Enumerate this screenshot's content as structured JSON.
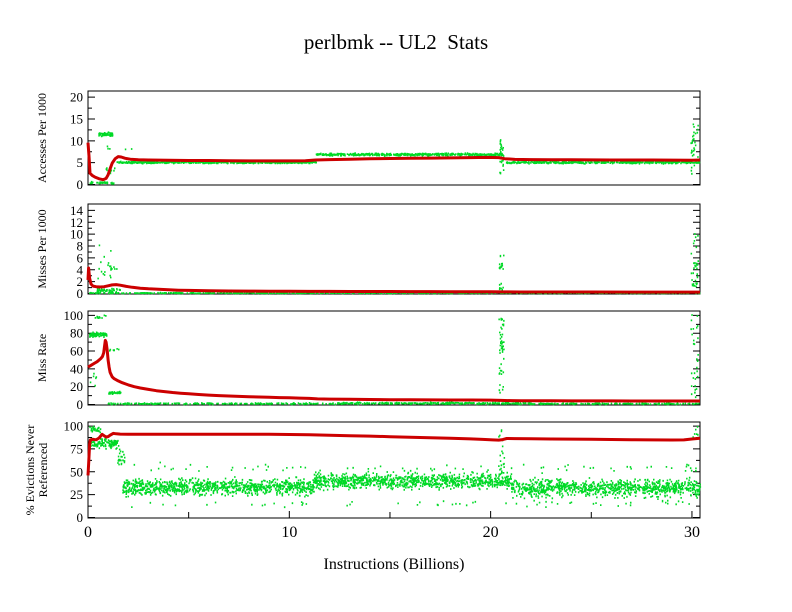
{
  "title": "perlbmk -- UL2  Stats",
  "xlabel": "Instructions (Billions)",
  "colors": {
    "line": "#cc0000",
    "scatter": "#00d926",
    "axis": "#000000",
    "background": "#ffffff"
  },
  "axes": {
    "xlim": [
      0,
      30.4
    ],
    "xticks": [
      0,
      10,
      20,
      30
    ],
    "x_minor_ticks": [
      5,
      15,
      25
    ]
  },
  "chart_data": [
    {
      "type": "scatter+line",
      "name": "ul2-accesses-per-1000",
      "ylabel": "Accesses Per 1000",
      "ylabel_lines": [
        "Accesses Per 1000"
      ],
      "ylim": [
        0,
        21.3
      ],
      "yticks": [
        0,
        5,
        10,
        15,
        20
      ],
      "y_minor_ticks": [
        2.5,
        7.5,
        12.5,
        17.5
      ],
      "line": {
        "points": [
          [
            0,
            9.6
          ],
          [
            0.05,
            6.5
          ],
          [
            0.1,
            2.6
          ],
          [
            0.2,
            2.1
          ],
          [
            0.35,
            1.7
          ],
          [
            0.55,
            1.3
          ],
          [
            0.75,
            1.1
          ],
          [
            0.9,
            1.4
          ],
          [
            1.0,
            2.2
          ],
          [
            1.1,
            3.6
          ],
          [
            1.2,
            4.9
          ],
          [
            1.35,
            5.9
          ],
          [
            1.5,
            6.4
          ],
          [
            1.65,
            6.3
          ],
          [
            1.85,
            6.0
          ],
          [
            2.1,
            5.8
          ],
          [
            2.5,
            5.65
          ],
          [
            3,
            5.6
          ],
          [
            4,
            5.55
          ],
          [
            5,
            5.5
          ],
          [
            6,
            5.5
          ],
          [
            7,
            5.45
          ],
          [
            8,
            5.4
          ],
          [
            9,
            5.4
          ],
          [
            10,
            5.4
          ],
          [
            10.8,
            5.45
          ],
          [
            11.3,
            5.6
          ],
          [
            12,
            5.7
          ],
          [
            13,
            5.8
          ],
          [
            14,
            5.9
          ],
          [
            15,
            5.95
          ],
          [
            16,
            6.0
          ],
          [
            17,
            6.05
          ],
          [
            18,
            6.1
          ],
          [
            19,
            6.15
          ],
          [
            19.8,
            6.2
          ],
          [
            20.4,
            6.15
          ],
          [
            20.7,
            5.9
          ],
          [
            21.2,
            5.75
          ],
          [
            22,
            5.7
          ],
          [
            23,
            5.68
          ],
          [
            24,
            5.65
          ],
          [
            25,
            5.63
          ],
          [
            26,
            5.62
          ],
          [
            27,
            5.6
          ],
          [
            28,
            5.6
          ],
          [
            29,
            5.58
          ],
          [
            30,
            5.55
          ],
          [
            30.4,
            5.6
          ]
        ]
      },
      "scatter": {
        "bands": [
          {
            "x0": 0.05,
            "x1": 1.25,
            "y": 0.35,
            "spread": 0.25,
            "n": 30
          },
          {
            "x0": 0.5,
            "x1": 1.2,
            "y": 11.5,
            "spread": 0.45,
            "n": 70
          },
          {
            "x0": 0.85,
            "x1": 1.3,
            "y": 3.0,
            "spread": 1.0,
            "n": 12
          },
          {
            "x0": 0.8,
            "x1": 2.2,
            "y": 8.4,
            "spread": 0.3,
            "n": 5
          },
          {
            "x0": 1.3,
            "x1": 11.3,
            "y": 5.05,
            "spread": 0.22,
            "n": 520
          },
          {
            "x0": 11.3,
            "x1": 20.6,
            "y": 6.85,
            "spread": 0.28,
            "n": 480
          },
          {
            "x0": 20.7,
            "x1": 30.4,
            "y": 5.05,
            "spread": 0.25,
            "n": 470
          }
        ],
        "columns": [
          {
            "x": 20.52,
            "xspread": 0.1,
            "y0": 2.5,
            "y1": 10.5,
            "n": 28
          },
          {
            "x": 30.1,
            "xspread": 0.18,
            "y0": 1.0,
            "y1": 13.8,
            "n": 32
          }
        ]
      }
    },
    {
      "type": "scatter+line",
      "name": "ul2-misses-per-1000",
      "ylabel": "Misses Per 1000",
      "ylabel_lines": [
        "Misses Per 1000"
      ],
      "ylim": [
        0,
        15.0
      ],
      "yticks": [
        0,
        2,
        4,
        6,
        8,
        10,
        12,
        14
      ],
      "y_minor_ticks": [
        1,
        3,
        5,
        7,
        9,
        11,
        13
      ],
      "line": {
        "points": [
          [
            0,
            2.3
          ],
          [
            0.03,
            4.3
          ],
          [
            0.08,
            2.6
          ],
          [
            0.15,
            1.6
          ],
          [
            0.25,
            1.25
          ],
          [
            0.4,
            1.15
          ],
          [
            0.6,
            1.1
          ],
          [
            0.8,
            1.15
          ],
          [
            1.0,
            1.3
          ],
          [
            1.2,
            1.45
          ],
          [
            1.4,
            1.5
          ],
          [
            1.6,
            1.4
          ],
          [
            1.9,
            1.2
          ],
          [
            2.2,
            1.05
          ],
          [
            2.6,
            0.9
          ],
          [
            3,
            0.8
          ],
          [
            3.5,
            0.7
          ],
          [
            4,
            0.62
          ],
          [
            4.5,
            0.56
          ],
          [
            5,
            0.52
          ],
          [
            6,
            0.46
          ],
          [
            7,
            0.42
          ],
          [
            8,
            0.4
          ],
          [
            9,
            0.38
          ],
          [
            10,
            0.37
          ],
          [
            11,
            0.36
          ],
          [
            12,
            0.35
          ],
          [
            13,
            0.34
          ],
          [
            14,
            0.34
          ],
          [
            15,
            0.33
          ],
          [
            16,
            0.32
          ],
          [
            17,
            0.32
          ],
          [
            18,
            0.31
          ],
          [
            19,
            0.3
          ],
          [
            20,
            0.29
          ],
          [
            20.6,
            0.27
          ],
          [
            21.5,
            0.26
          ],
          [
            23,
            0.25
          ],
          [
            25,
            0.25
          ],
          [
            27,
            0.24
          ],
          [
            29,
            0.24
          ],
          [
            30.4,
            0.24
          ]
        ]
      },
      "scatter": {
        "bands": [
          {
            "x0": 0.0,
            "x1": 30.4,
            "y": 0.07,
            "spread": 0.07,
            "n": 650
          },
          {
            "x0": 0.3,
            "x1": 1.6,
            "y": 0.55,
            "spread": 0.35,
            "n": 45
          },
          {
            "x0": 1.1,
            "x1": 1.45,
            "y": 4.2,
            "spread": 0.4,
            "n": 8
          }
        ],
        "columns": [
          {
            "x": 0.8,
            "xspread": 0.35,
            "y0": 1.5,
            "y1": 8.2,
            "n": 16
          },
          {
            "x": 20.5,
            "xspread": 0.12,
            "y0": 0.4,
            "y1": 7.0,
            "n": 15
          },
          {
            "x": 20.5,
            "xspread": 0.1,
            "y0": 4.2,
            "y1": 5.0,
            "n": 6
          },
          {
            "x": 30.1,
            "xspread": 0.18,
            "y0": 0.4,
            "y1": 10.2,
            "n": 18
          },
          {
            "x": 30.1,
            "xspread": 0.15,
            "y0": 4.0,
            "y1": 5.2,
            "n": 10
          },
          {
            "x": 30.1,
            "xspread": 0.15,
            "y0": 1.2,
            "y1": 1.8,
            "n": 6
          }
        ]
      }
    },
    {
      "type": "scatter+line",
      "name": "ul2-miss-rate",
      "ylabel": "Miss Rate",
      "ylabel_lines": [
        "Miss Rate"
      ],
      "ylim": [
        0,
        104.4
      ],
      "yticks": [
        0,
        20,
        40,
        60,
        80,
        100
      ],
      "y_minor_ticks": [
        10,
        30,
        50,
        70,
        90
      ],
      "line": {
        "points": [
          [
            0,
            42
          ],
          [
            0.15,
            44
          ],
          [
            0.3,
            46
          ],
          [
            0.45,
            48
          ],
          [
            0.55,
            50
          ],
          [
            0.65,
            52
          ],
          [
            0.72,
            54
          ],
          [
            0.78,
            58
          ],
          [
            0.82,
            65
          ],
          [
            0.86,
            72
          ],
          [
            0.9,
            70
          ],
          [
            0.95,
            62
          ],
          [
            1.0,
            50
          ],
          [
            1.05,
            42
          ],
          [
            1.1,
            36
          ],
          [
            1.2,
            31
          ],
          [
            1.3,
            29
          ],
          [
            1.5,
            26.5
          ],
          [
            1.7,
            24.5
          ],
          [
            2.0,
            22
          ],
          [
            2.3,
            20
          ],
          [
            2.6,
            18.5
          ],
          [
            3.0,
            17
          ],
          [
            3.4,
            15.5
          ],
          [
            3.8,
            14.5
          ],
          [
            4.2,
            13.5
          ],
          [
            4.6,
            12.7
          ],
          [
            5.0,
            12
          ],
          [
            5.5,
            11.2
          ],
          [
            6.0,
            10.5
          ],
          [
            6.5,
            10
          ],
          [
            7.0,
            9.5
          ],
          [
            7.5,
            9.1
          ],
          [
            8.0,
            8.7
          ],
          [
            8.5,
            8.4
          ],
          [
            9,
            8.1
          ],
          [
            9.5,
            7.8
          ],
          [
            10,
            7.5
          ],
          [
            10.5,
            7.2
          ],
          [
            11,
            6.9
          ],
          [
            11.4,
            6.3
          ],
          [
            12,
            6.1
          ],
          [
            13,
            5.8
          ],
          [
            14,
            5.6
          ],
          [
            15,
            5.4
          ],
          [
            16,
            5.3
          ],
          [
            17,
            5.2
          ],
          [
            18,
            5.1
          ],
          [
            19,
            5.0
          ],
          [
            20,
            4.9
          ],
          [
            20.5,
            4.6
          ],
          [
            21,
            4.4
          ],
          [
            21.5,
            4.3
          ],
          [
            22,
            4.2
          ],
          [
            23,
            4.1
          ],
          [
            24,
            4.05
          ],
          [
            25,
            4.0
          ],
          [
            26,
            4.0
          ],
          [
            27,
            3.95
          ],
          [
            28,
            3.9
          ],
          [
            29,
            3.9
          ],
          [
            30.4,
            3.9
          ]
        ]
      },
      "scatter": {
        "bands": [
          {
            "x0": 0.05,
            "x1": 0.9,
            "y": 78,
            "spread": 2.5,
            "n": 70
          },
          {
            "x0": 0.2,
            "x1": 0.9,
            "y": 97.5,
            "spread": 2,
            "n": 10
          },
          {
            "x0": 0.05,
            "x1": 0.4,
            "y": 30,
            "spread": 8,
            "n": 6
          },
          {
            "x0": 1.0,
            "x1": 1.6,
            "y": 13,
            "spread": 1.2,
            "n": 35
          },
          {
            "x0": 1.0,
            "x1": 1.5,
            "y": 62,
            "spread": 4,
            "n": 7
          },
          {
            "x0": 0.9,
            "x1": 12,
            "y": 0.9,
            "spread": 0.7,
            "n": 200
          },
          {
            "x0": 12,
            "x1": 22,
            "y": 1.3,
            "spread": 0.9,
            "n": 320
          },
          {
            "x0": 22,
            "x1": 30.4,
            "y": 0.8,
            "spread": 0.6,
            "n": 150
          }
        ],
        "columns": [
          {
            "x": 20.5,
            "xspread": 0.12,
            "y0": 3,
            "y1": 97,
            "n": 35
          },
          {
            "x": 20.55,
            "xspread": 0.1,
            "y0": 60,
            "y1": 95,
            "n": 12
          },
          {
            "x": 30.1,
            "xspread": 0.18,
            "y0": 3,
            "y1": 101,
            "n": 30
          }
        ]
      }
    },
    {
      "type": "scatter+line",
      "name": "ul2-pct-evictions-never-referenced",
      "ylabel": "% Evictions Never Referenced",
      "ylabel_lines": [
        "% Evictions Never",
        "Referenced"
      ],
      "ylim": [
        0,
        103.9
      ],
      "yticks": [
        0,
        25,
        50,
        75,
        100
      ],
      "y_minor_ticks": [
        12.5,
        37.5,
        62.5,
        87.5
      ],
      "line": {
        "points": [
          [
            0,
            46
          ],
          [
            0.04,
            62
          ],
          [
            0.08,
            80
          ],
          [
            0.12,
            85
          ],
          [
            0.25,
            85.5
          ],
          [
            0.4,
            85
          ],
          [
            0.55,
            87
          ],
          [
            0.7,
            91
          ],
          [
            0.8,
            89.5
          ],
          [
            0.9,
            88
          ],
          [
            1.0,
            88.5
          ],
          [
            1.1,
            90
          ],
          [
            1.25,
            92
          ],
          [
            1.4,
            91.5
          ],
          [
            1.6,
            91.2
          ],
          [
            2,
            91
          ],
          [
            3,
            91
          ],
          [
            4,
            91
          ],
          [
            5,
            91
          ],
          [
            6,
            91
          ],
          [
            7,
            91
          ],
          [
            8,
            91
          ],
          [
            9,
            91
          ],
          [
            10,
            90.8
          ],
          [
            11,
            90.4
          ],
          [
            12,
            90
          ],
          [
            13,
            89.5
          ],
          [
            14,
            89
          ],
          [
            15,
            88.4
          ],
          [
            16,
            87.8
          ],
          [
            17,
            87.2
          ],
          [
            18,
            86.6
          ],
          [
            19,
            86
          ],
          [
            19.6,
            85.4
          ],
          [
            20.1,
            84.9
          ],
          [
            20.4,
            84.6
          ],
          [
            20.6,
            85.2
          ],
          [
            20.8,
            86.4
          ],
          [
            21.2,
            86.3
          ],
          [
            22,
            86.1
          ],
          [
            23,
            85.9
          ],
          [
            24,
            85.7
          ],
          [
            25,
            85.5
          ],
          [
            26,
            85.3
          ],
          [
            27,
            85.1
          ],
          [
            28,
            84.9
          ],
          [
            29,
            84.8
          ],
          [
            29.6,
            84.9
          ],
          [
            30,
            85.8
          ],
          [
            30.4,
            86.6
          ]
        ]
      },
      "scatter": {
        "bands": [
          {
            "x0": 0.05,
            "x1": 0.6,
            "y": 96,
            "spread": 3,
            "n": 30
          },
          {
            "x0": 0.1,
            "x1": 1.5,
            "y": 81,
            "spread": 4.5,
            "n": 110
          },
          {
            "x0": 1.45,
            "x1": 1.8,
            "y": 62,
            "spread": 9,
            "n": 25
          },
          {
            "x0": 1.7,
            "x1": 11.2,
            "y": 33,
            "spread": 8.5,
            "n": 950
          },
          {
            "x0": 11.2,
            "x1": 21.0,
            "y": 40,
            "spread": 8,
            "n": 950
          },
          {
            "x0": 21.0,
            "x1": 30.4,
            "y": 32,
            "spread": 9,
            "n": 900
          },
          {
            "x0": 1.8,
            "x1": 30.3,
            "y": 54,
            "spread": 5,
            "n": 70
          },
          {
            "x0": 2.0,
            "x1": 30.3,
            "y": 15,
            "spread": 4,
            "n": 60
          }
        ],
        "columns": [
          {
            "x": 20.5,
            "xspread": 0.15,
            "y0": 45,
            "y1": 97,
            "n": 22
          },
          {
            "x": 30.15,
            "xspread": 0.15,
            "y0": 85,
            "y1": 100,
            "n": 8
          }
        ]
      }
    }
  ]
}
